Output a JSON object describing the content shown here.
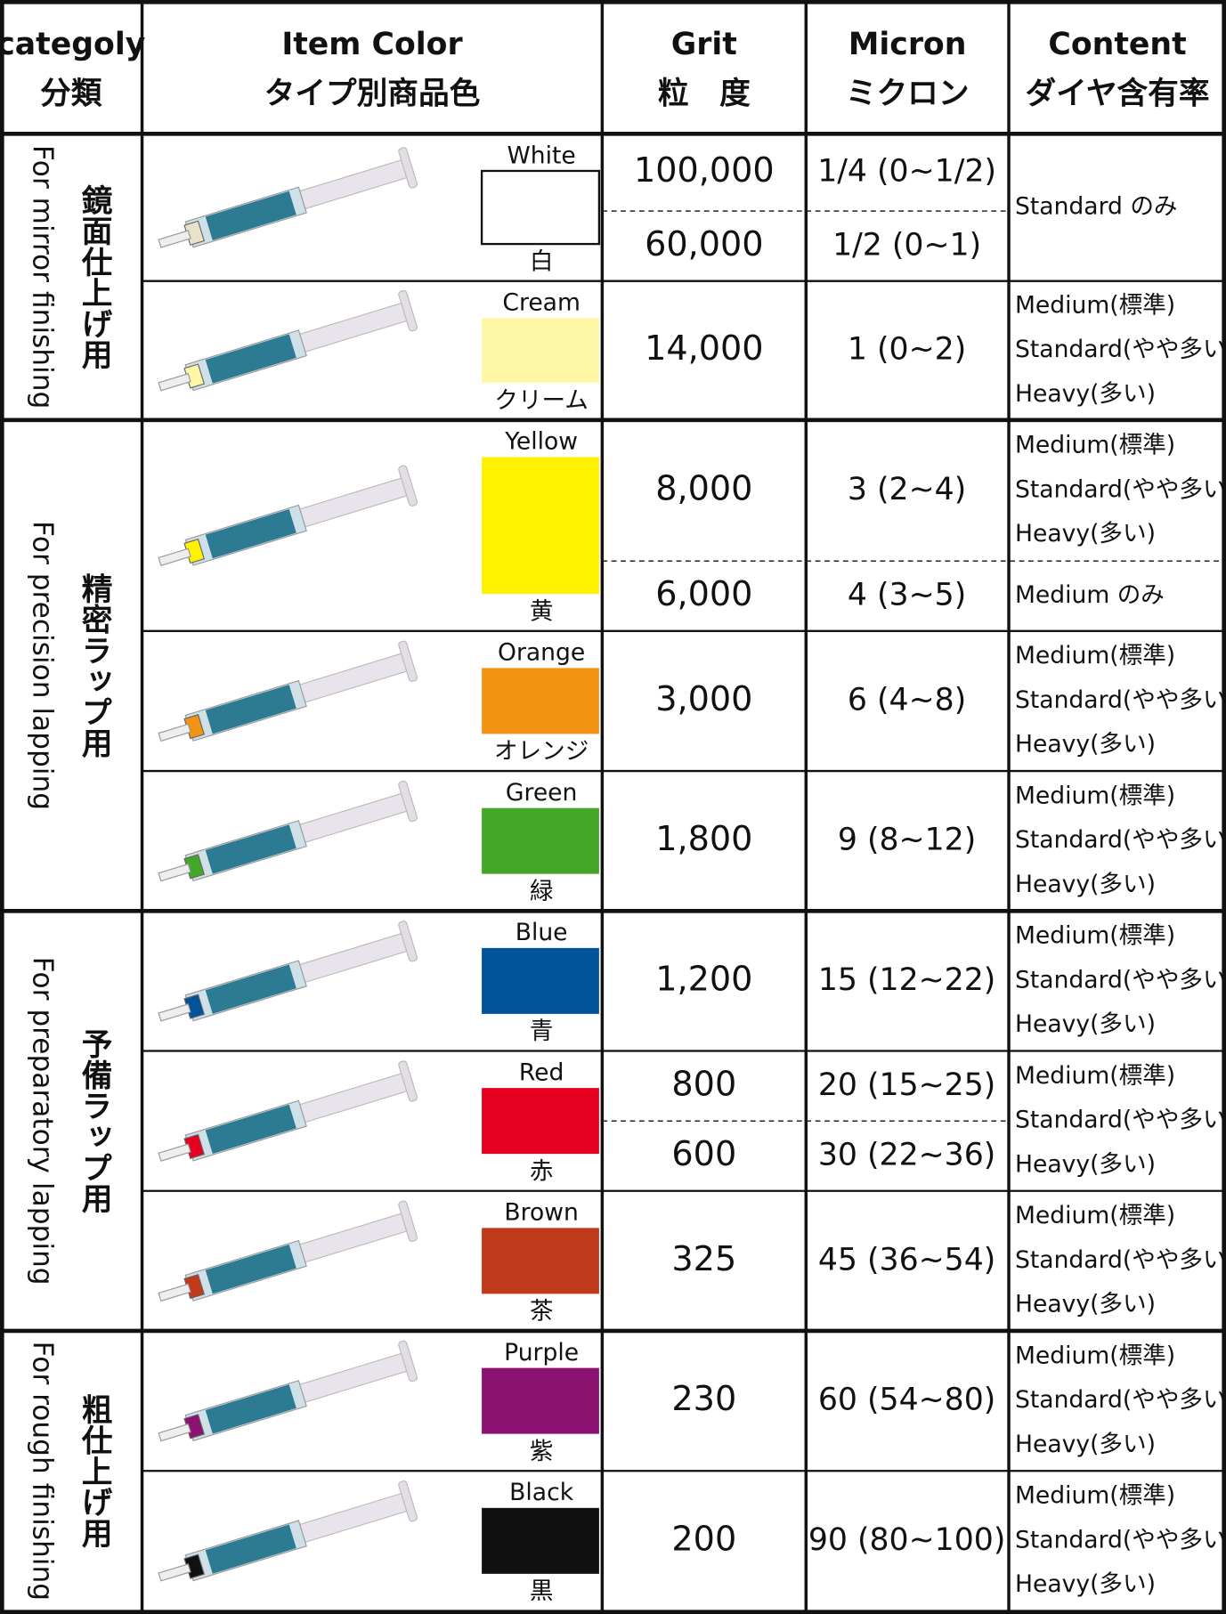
{
  "header": [
    {
      "en": "categoly",
      "ja": "分類"
    },
    {
      "en": "Item Color",
      "ja": "タイプ別商品色"
    },
    {
      "en": "Grit",
      "ja": "粒　度"
    },
    {
      "en": "Micron",
      "ja": "ミクロン"
    },
    {
      "en": "Content",
      "ja": "ダイヤ含有率"
    }
  ],
  "categories": [
    {
      "ja": "鏡面仕上げ用",
      "en": "For mirror finishing",
      "rows": [
        {
          "name": "White",
          "ja": "白",
          "color": "#ffffff",
          "grit": [
            "100,000",
            "60,000"
          ],
          "micron": [
            "1/4 (0~1/2)",
            "1/2 (0~1)"
          ],
          "content": [
            [
              "Standard のみ"
            ]
          ]
        },
        {
          "name": "Cream",
          "ja": "クリーム",
          "color": "#fdf7a6",
          "grit": [
            "14,000"
          ],
          "micron": [
            "1 (0~2)"
          ],
          "content": [
            [
              "Medium(標準)",
              "Standard(やや多い)",
              "Heavy(多い)"
            ]
          ]
        }
      ]
    },
    {
      "ja": "精密ラップ用",
      "en": "For precision lapping",
      "rows": [
        {
          "name": "Yellow",
          "ja": "黄",
          "color": "#fff200",
          "grit": [
            "8,000",
            "6,000"
          ],
          "micron": [
            "3 (2~4)",
            "4 (3~5)"
          ],
          "content": [
            [
              "Medium(標準)",
              "Standard(やや多い)",
              "Heavy(多い)"
            ],
            [
              "Medium のみ"
            ]
          ]
        },
        {
          "name": "Orange",
          "ja": "オレンジ",
          "color": "#f39313",
          "grit": [
            "3,000"
          ],
          "micron": [
            "6 (4~8)"
          ],
          "content": [
            [
              "Medium(標準)",
              "Standard(やや多い)",
              "Heavy(多い)"
            ]
          ]
        },
        {
          "name": "Green",
          "ja": "緑",
          "color": "#45a72a",
          "grit": [
            "1,800"
          ],
          "micron": [
            "9 (8~12)"
          ],
          "content": [
            [
              "Medium(標準)",
              "Standard(やや多い)",
              "Heavy(多い)"
            ]
          ]
        }
      ]
    },
    {
      "ja": "予備ラップ用",
      "en": "For preparatory lapping",
      "rows": [
        {
          "name": "Blue",
          "ja": "青",
          "color": "#005399",
          "grit": [
            "1,200"
          ],
          "micron": [
            "15 (12~22)"
          ],
          "content": [
            [
              "Medium(標準)",
              "Standard(やや多い)",
              "Heavy(多い)"
            ]
          ]
        },
        {
          "name": "Red",
          "ja": "赤",
          "color": "#e60020",
          "grit": [
            "800",
            "600"
          ],
          "micron": [
            "20 (15~25)",
            "30 (22~36)"
          ],
          "content": [
            [
              "Medium(標準)",
              "Standard(やや多い)",
              "Heavy(多い)"
            ]
          ]
        },
        {
          "name": "Brown",
          "ja": "茶",
          "color": "#c1391b",
          "grit": [
            "325"
          ],
          "micron": [
            "45 (36~54)"
          ],
          "content": [
            [
              "Medium(標準)",
              "Standard(やや多い)",
              "Heavy(多い)"
            ]
          ]
        }
      ]
    },
    {
      "ja": "粗仕上げ用",
      "en": "For rough finishing",
      "rows": [
        {
          "name": "Purple",
          "ja": "紫",
          "color": "#8c1271",
          "grit": [
            "230"
          ],
          "micron": [
            "60 (54~80)"
          ],
          "content": [
            [
              "Medium(標準)",
              "Standard(やや多い)",
              "Heavy(多い)"
            ]
          ]
        },
        {
          "name": "Black",
          "ja": "黒",
          "color": "#111111",
          "grit": [
            "200"
          ],
          "micron": [
            "90 (80~100)"
          ],
          "content": [
            [
              "Medium(標準)",
              "Standard(やや多い)",
              "Heavy(多い)"
            ]
          ]
        }
      ]
    }
  ]
}
